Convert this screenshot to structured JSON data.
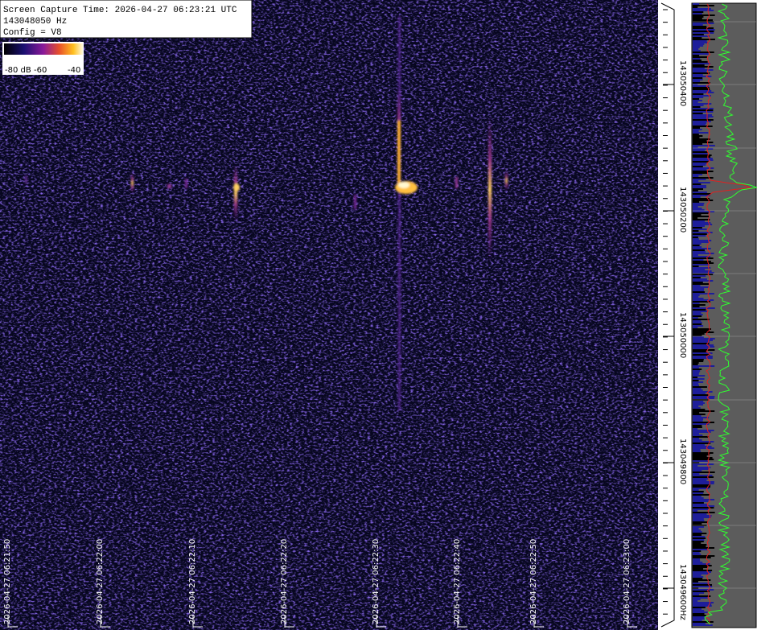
{
  "info": {
    "capture": "Screen Capture Time: 2026-04-27 06:23:21 UTC",
    "frequency": "143048050 Hz",
    "config": "Config = V8"
  },
  "colorbar": {
    "labels": [
      "-80 dB",
      "-60",
      "-40"
    ]
  },
  "time_axis": {
    "labels": [
      "2026-04-27 06:21:50",
      "2026-04-27 06:22:00",
      "2026-04-27 06:22:10",
      "2026-04-27 06:22:20",
      "2026-04-27 06:22:30",
      "2026-04-27 06:22:40",
      "2026-04-27 06:22:50",
      "2026-04-27 06:23:00"
    ]
  },
  "frequency_axis": {
    "labels": [
      "143050400",
      "143050200",
      "143050000",
      "143049800",
      "143049600"
    ],
    "unit": "Hz"
  }
}
